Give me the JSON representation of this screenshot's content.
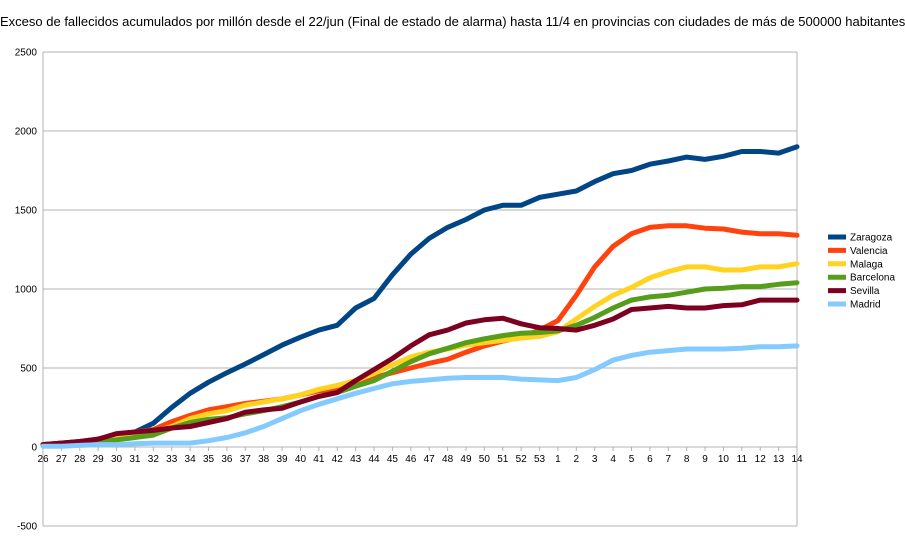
{
  "chart_data": {
    "type": "line",
    "title": "Exceso de fallecidos acumulados por millón desde el 22/jun (Final de estado de alarma) hasta 11/4 en provincias con ciudades de más de 500000 habitantes",
    "xlabel": "",
    "ylabel": "",
    "ylim": [
      -500,
      2500
    ],
    "yticks": [
      2500,
      2000,
      1500,
      1000,
      500,
      0,
      -500
    ],
    "grid": true,
    "legend_position": "right",
    "categories": [
      "26",
      "27",
      "28",
      "29",
      "30",
      "31",
      "32",
      "33",
      "34",
      "35",
      "36",
      "37",
      "38",
      "39",
      "40",
      "41",
      "42",
      "43",
      "44",
      "45",
      "46",
      "47",
      "48",
      "49",
      "50",
      "51",
      "52",
      "53",
      "1",
      "2",
      "3",
      "4",
      "5",
      "6",
      "7",
      "8",
      "9",
      "10",
      "11",
      "12",
      "13",
      "14"
    ],
    "series": [
      {
        "name": "Zaragoza",
        "color": "#004586",
        "values": [
          15,
          25,
          35,
          50,
          75,
          95,
          150,
          250,
          340,
          410,
          470,
          525,
          585,
          645,
          695,
          740,
          770,
          880,
          940,
          1090,
          1220,
          1320,
          1390,
          1440,
          1500,
          1530,
          1530,
          1580,
          1600,
          1620,
          1680,
          1730,
          1750,
          1790,
          1810,
          1835,
          1820,
          1840,
          1870,
          1870,
          1860,
          1900
        ]
      },
      {
        "name": "Valencia",
        "color": "#ff420e",
        "values": [
          15,
          25,
          30,
          40,
          70,
          95,
          110,
          160,
          200,
          235,
          255,
          275,
          290,
          305,
          330,
          355,
          365,
          410,
          440,
          470,
          500,
          530,
          555,
          600,
          640,
          670,
          695,
          740,
          800,
          960,
          1140,
          1270,
          1350,
          1390,
          1400,
          1400,
          1385,
          1380,
          1360,
          1350,
          1350,
          1340
        ]
      },
      {
        "name": "Malaga",
        "color": "#ffd320",
        "values": [
          10,
          20,
          30,
          35,
          55,
          75,
          95,
          130,
          180,
          210,
          230,
          265,
          285,
          305,
          330,
          365,
          390,
          420,
          465,
          520,
          570,
          600,
          620,
          645,
          660,
          675,
          690,
          700,
          730,
          810,
          890,
          960,
          1010,
          1070,
          1110,
          1140,
          1140,
          1120,
          1120,
          1140,
          1140,
          1160
        ]
      },
      {
        "name": "Barcelona",
        "color": "#579d1c",
        "values": [
          10,
          20,
          25,
          30,
          45,
          60,
          75,
          120,
          155,
          175,
          185,
          210,
          230,
          255,
          285,
          320,
          345,
          385,
          420,
          480,
          540,
          590,
          625,
          660,
          685,
          705,
          720,
          725,
          735,
          770,
          820,
          880,
          930,
          950,
          960,
          980,
          1000,
          1005,
          1015,
          1015,
          1030,
          1040
        ]
      },
      {
        "name": "Sevilla",
        "color": "#7e0021",
        "values": [
          15,
          25,
          35,
          50,
          85,
          95,
          105,
          120,
          130,
          155,
          180,
          220,
          235,
          245,
          285,
          320,
          345,
          420,
          490,
          560,
          640,
          710,
          740,
          785,
          805,
          815,
          780,
          755,
          750,
          740,
          770,
          810,
          870,
          880,
          890,
          880,
          880,
          895,
          900,
          930,
          930,
          930
        ]
      },
      {
        "name": "Madrid",
        "color": "#83caff",
        "values": [
          5,
          5,
          10,
          15,
          15,
          20,
          25,
          25,
          25,
          40,
          60,
          90,
          130,
          180,
          230,
          270,
          305,
          340,
          370,
          400,
          415,
          425,
          435,
          440,
          440,
          440,
          430,
          425,
          420,
          440,
          490,
          550,
          580,
          600,
          610,
          620,
          620,
          620,
          625,
          635,
          635,
          640
        ]
      }
    ]
  }
}
